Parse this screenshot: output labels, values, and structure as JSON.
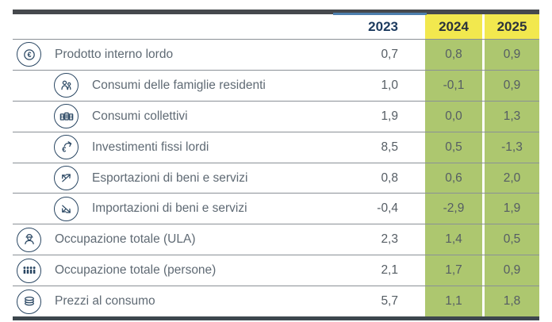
{
  "chart_data": {
    "type": "table",
    "columns": [
      "2023",
      "2024",
      "2025"
    ],
    "highlighted_columns": [
      "2024",
      "2025"
    ],
    "rows": [
      {
        "label": "Prodotto interno lordo",
        "icon": "euro-coin-icon",
        "indent": 0,
        "values": [
          "0,7",
          "0,8",
          "0,9"
        ]
      },
      {
        "label": "Consumi delle famiglie residenti",
        "icon": "family-icon",
        "indent": 1,
        "values": [
          "1,0",
          "-0,1",
          "0,9"
        ]
      },
      {
        "label": "Consumi collettivi",
        "icon": "public-buildings-icon",
        "indent": 1,
        "values": [
          "1,9",
          "0,0",
          "1,3"
        ]
      },
      {
        "label": "Investimenti fissi lordi",
        "icon": "investment-icon",
        "indent": 1,
        "values": [
          "8,5",
          "0,5",
          "-1,3"
        ]
      },
      {
        "label": "Esportazioni di beni e servizi",
        "icon": "export-arrows-icon",
        "indent": 1,
        "values": [
          "0,8",
          "0,6",
          "2,0"
        ]
      },
      {
        "label": "Importazioni di beni e servizi",
        "icon": "import-arrows-icon",
        "indent": 1,
        "values": [
          "-0,4",
          "-2,9",
          "1,9"
        ]
      },
      {
        "label": "Occupazione totale (ULA)",
        "icon": "worker-icon",
        "indent": 0,
        "values": [
          "2,3",
          "1,4",
          "0,5"
        ]
      },
      {
        "label": "Occupazione totale (persone)",
        "icon": "people-icon",
        "indent": 0,
        "values": [
          "2,1",
          "1,7",
          "0,9"
        ]
      },
      {
        "label": "Prezzi al consumo",
        "icon": "coins-icon",
        "indent": 0,
        "values": [
          "5,7",
          "1,1",
          "1,8"
        ]
      }
    ]
  },
  "colors": {
    "navy_header": "#1c3a5f",
    "year_on_yellow": "#2b333c",
    "yellow": "#f2e84e",
    "green": "#adc76f",
    "top_bar": "#46494d",
    "bottom_bar": "#3d474e",
    "accent_blue": "#4d7fae",
    "separator": "#8a9096",
    "label_text": "#5f6a74",
    "value_text": "#555d64",
    "icon_navy": "#2a4763"
  }
}
